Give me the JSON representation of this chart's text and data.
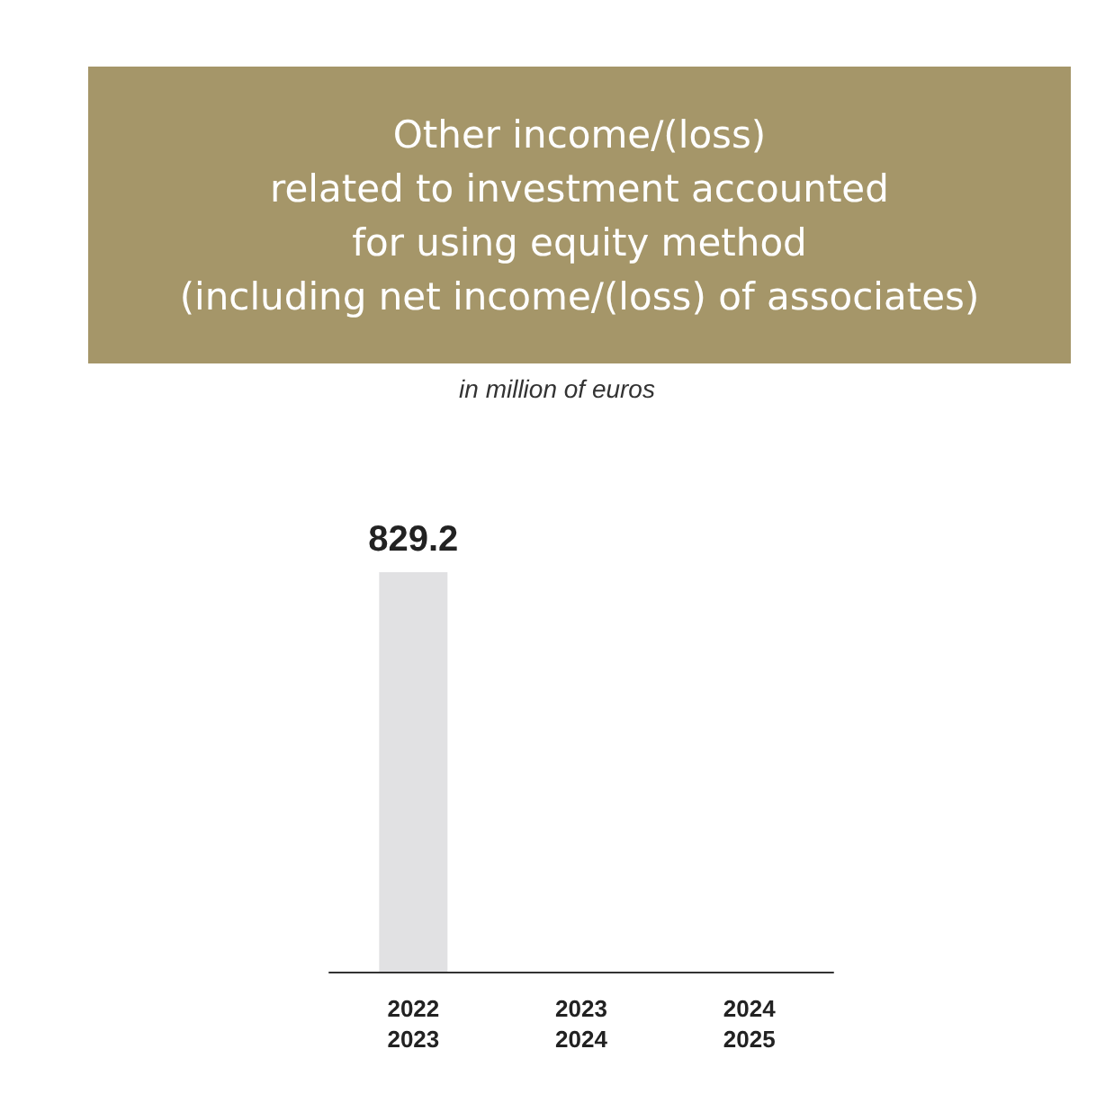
{
  "chart_data": {
    "type": "bar",
    "title": "Other income/(loss)\nrelated to investment accounted\nfor using equity method\n(including net income/(loss) of associates)",
    "subtitle": "in million of euros",
    "categories": [
      "2022\n2023",
      "2023\n2024",
      "2024\n2025"
    ],
    "values": [
      829.2,
      null,
      null
    ],
    "color": "#e1e1e3",
    "data_labels": true,
    "tick_labels": "x"
  }
}
